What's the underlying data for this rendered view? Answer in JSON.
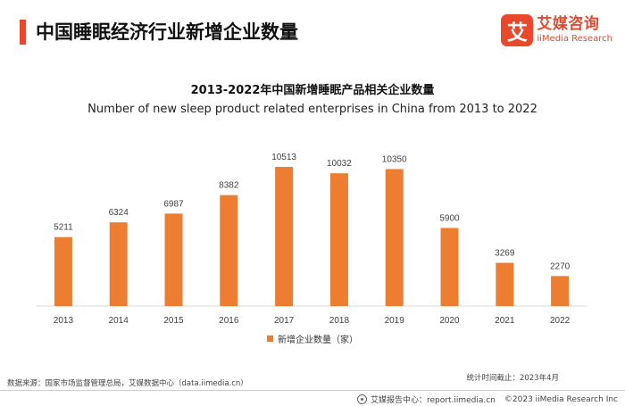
{
  "header": {
    "title": "中国睡眠经济行业新增企业数量"
  },
  "brand": {
    "mark": "艾",
    "name_cn": "艾媒咨询",
    "name_en": "iiMedia Research",
    "color": "#e8482c"
  },
  "chart_data": {
    "type": "bar",
    "title": "2013-2022年中国新增睡眠产品相关企业数量",
    "subtitle": "Number of new sleep product related enterprises in China from 2013 to 2022",
    "categories": [
      "2013",
      "2014",
      "2015",
      "2016",
      "2017",
      "2018",
      "2019",
      "2020",
      "2021",
      "2022"
    ],
    "series": [
      {
        "name": "新增企业数量（家）",
        "values": [
          5211,
          6324,
          6987,
          8382,
          10513,
          10032,
          10350,
          5900,
          3269,
          2270
        ],
        "color": "#ed7d31"
      }
    ],
    "xlabel": "",
    "ylabel": "",
    "ylim": [
      0,
      12000
    ],
    "grid": false,
    "legend_position": "bottom-center",
    "axis_color": "#d9d9d9"
  },
  "footer": {
    "source": "数据来源：国家市场监督管理总局，艾媒数据中心（data.iimedia.cn）",
    "stat_date": "统计时间截止：2023年4月",
    "report_center": "艾媒报告中心：report.iimedia.cn",
    "copyright": "©2023  iiMedia Research  Inc"
  }
}
